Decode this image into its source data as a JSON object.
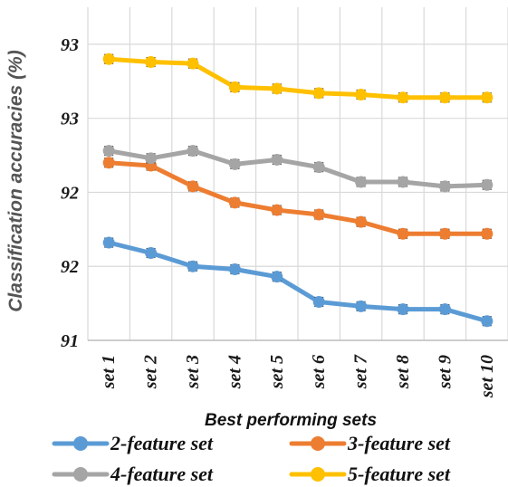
{
  "chart_data": {
    "type": "line",
    "xlabel": "Best performing sets",
    "ylabel": "Classification accuracies (%)",
    "categories": [
      "set 1",
      "set 2",
      "set 3",
      "set 4",
      "set 5",
      "set 6",
      "set 7",
      "set 8",
      "set 9",
      "set 10"
    ],
    "ylim": [
      91.0,
      93.25
    ],
    "yticks": [
      91.0,
      91.5,
      92.0,
      92.5,
      93.0
    ],
    "ytick_labels": [
      "91",
      "92",
      "92",
      "93",
      "93"
    ],
    "grid": "vertical and horizontal",
    "legend_position": "bottom",
    "series": [
      {
        "name": "2-feature set",
        "color": "#5b9bd5",
        "values": [
          91.66,
          91.59,
          91.5,
          91.48,
          91.43,
          91.26,
          91.23,
          91.21,
          91.21,
          91.13
        ]
      },
      {
        "name": "3-feature set",
        "color": "#ed7d31",
        "values": [
          92.2,
          92.18,
          92.04,
          91.93,
          91.88,
          91.85,
          91.8,
          91.72,
          91.72,
          91.72
        ]
      },
      {
        "name": "4-feature set",
        "color": "#a5a5a5",
        "values": [
          92.28,
          92.23,
          92.28,
          92.19,
          92.22,
          92.17,
          92.07,
          92.07,
          92.04,
          92.05
        ]
      },
      {
        "name": "5-feature set",
        "color": "#ffc000",
        "values": [
          92.9,
          92.88,
          92.87,
          92.71,
          92.7,
          92.67,
          92.66,
          92.64,
          92.64,
          92.64
        ]
      }
    ],
    "error_bars": [
      0.03,
      0.03,
      0.03,
      0.03
    ]
  }
}
